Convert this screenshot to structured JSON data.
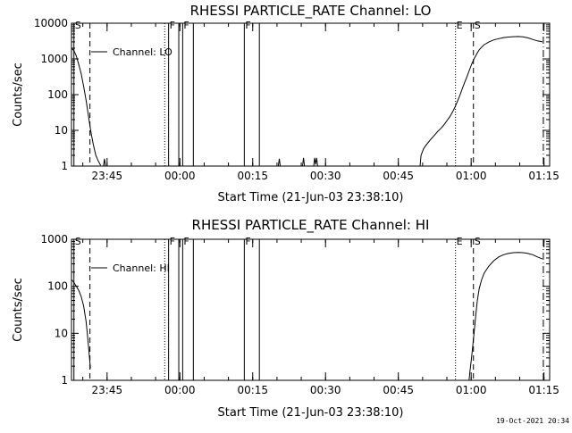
{
  "footer_timestamp": "19-Oct-2021 20:34",
  "chart_data": [
    {
      "type": "line",
      "title": "RHESSI PARTICLE_RATE Channel: LO",
      "xlabel": "Start Time (21-Jun-03 23:38:10)",
      "ylabel": "Counts/sec",
      "yscale": "log",
      "ylim": [
        1,
        10000
      ],
      "xlim_minutes": [
        0,
        98.5
      ],
      "xticks": [
        {
          "t": 7.33,
          "label": "23:45"
        },
        {
          "t": 22.33,
          "label": "00:00"
        },
        {
          "t": 37.33,
          "label": "00:15"
        },
        {
          "t": 52.33,
          "label": "00:30"
        },
        {
          "t": 67.33,
          "label": "00:45"
        },
        {
          "t": 82.33,
          "label": "01:00"
        },
        {
          "t": 97.33,
          "label": "01:15"
        }
      ],
      "yticks": [
        {
          "v": 1,
          "label": "1"
        },
        {
          "v": 10,
          "label": "10"
        },
        {
          "v": 100,
          "label": "100"
        },
        {
          "v": 1000,
          "label": "1000"
        },
        {
          "v": 10000,
          "label": "10000"
        }
      ],
      "legend": {
        "label": "Channel: LO",
        "placement": "top-left"
      },
      "markers": [
        {
          "t": 0.5,
          "style": "solid",
          "label": "S"
        },
        {
          "t": 3.8,
          "style": "dashed",
          "label": ""
        },
        {
          "t": 19.2,
          "style": "dotted",
          "label": ""
        },
        {
          "t": 20.0,
          "style": "solid",
          "label": "F"
        },
        {
          "t": 22.1,
          "style": "solid",
          "label": ""
        },
        {
          "t": 22.9,
          "style": "solid",
          "label": "F"
        },
        {
          "t": 25.1,
          "style": "solid",
          "label": ""
        },
        {
          "t": 35.6,
          "style": "solid",
          "label": "F"
        },
        {
          "t": 38.7,
          "style": "solid",
          "label": ""
        },
        {
          "t": 79.1,
          "style": "dotted",
          "label": "E"
        },
        {
          "t": 82.8,
          "style": "dashed",
          "label": "S"
        },
        {
          "t": 97.2,
          "style": "dashdot",
          "label": ""
        }
      ],
      "series": [
        {
          "segments": [
            [
              [
                0,
                2000
              ],
              [
                0.5,
                1700
              ],
              [
                1,
                1200
              ],
              [
                1.5,
                700
              ],
              [
                2,
                380
              ],
              [
                2.5,
                170
              ],
              [
                3,
                70
              ],
              [
                3.5,
                25
              ],
              [
                4,
                9
              ],
              [
                4.5,
                4
              ],
              [
                5,
                2
              ],
              [
                5.5,
                1.4
              ],
              [
                6,
                1.05
              ]
            ],
            [
              [
                6.6,
                1
              ],
              [
                6.8,
                1.6
              ],
              [
                7.0,
                1
              ]
            ],
            [
              [
                42.6,
                1
              ],
              [
                42.8,
                1.6
              ],
              [
                43.0,
                1
              ]
            ],
            [
              [
                47.6,
                1
              ],
              [
                47.8,
                1.7
              ],
              [
                48.0,
                1
              ]
            ],
            [
              [
                49.9,
                1
              ],
              [
                50.1,
                1.7
              ],
              [
                50.3,
                1.1
              ],
              [
                50.5,
                1.7
              ],
              [
                50.7,
                1
              ]
            ],
            [
              [
                71.8,
                1
              ],
              [
                72.0,
                2
              ],
              [
                72.5,
                3
              ],
              [
                73,
                3.8
              ],
              [
                73.5,
                4.6
              ],
              [
                74,
                5.6
              ],
              [
                74.5,
                6.6
              ],
              [
                75,
                8
              ],
              [
                75.5,
                9.5
              ],
              [
                76,
                11
              ],
              [
                76.5,
                13
              ],
              [
                77,
                16
              ],
              [
                77.5,
                20
              ],
              [
                78,
                25
              ],
              [
                78.5,
                33
              ],
              [
                79,
                45
              ],
              [
                79.5,
                65
              ],
              [
                80,
                95
              ],
              [
                80.5,
                145
              ],
              [
                81,
                220
              ],
              [
                81.5,
                330
              ],
              [
                82,
                500
              ],
              [
                82.5,
                750
              ],
              [
                83,
                1050
              ],
              [
                83.5,
                1400
              ],
              [
                84,
                1800
              ],
              [
                84.5,
                2150
              ],
              [
                85,
                2500
              ],
              [
                86,
                3000
              ],
              [
                87,
                3400
              ],
              [
                88,
                3700
              ],
              [
                89,
                3950
              ],
              [
                90,
                4100
              ],
              [
                91,
                4200
              ],
              [
                92,
                4250
              ],
              [
                93,
                4150
              ],
              [
                94,
                3900
              ],
              [
                95,
                3500
              ],
              [
                96,
                3200
              ],
              [
                97,
                3000
              ]
            ]
          ]
        }
      ]
    },
    {
      "type": "line",
      "title": "RHESSI PARTICLE_RATE Channel: HI",
      "xlabel": "Start Time (21-Jun-03 23:38:10)",
      "ylabel": "Counts/sec",
      "yscale": "log",
      "ylim": [
        1,
        1000
      ],
      "xlim_minutes": [
        0,
        98.5
      ],
      "xticks": [
        {
          "t": 7.33,
          "label": "23:45"
        },
        {
          "t": 22.33,
          "label": "00:00"
        },
        {
          "t": 37.33,
          "label": "00:15"
        },
        {
          "t": 52.33,
          "label": "00:30"
        },
        {
          "t": 67.33,
          "label": "00:45"
        },
        {
          "t": 82.33,
          "label": "01:00"
        },
        {
          "t": 97.33,
          "label": "01:15"
        }
      ],
      "yticks": [
        {
          "v": 1,
          "label": "1"
        },
        {
          "v": 10,
          "label": "10"
        },
        {
          "v": 100,
          "label": "100"
        },
        {
          "v": 1000,
          "label": "1000"
        }
      ],
      "legend": {
        "label": "Channel: HI",
        "placement": "top-left"
      },
      "markers": [
        {
          "t": 0.5,
          "style": "solid",
          "label": "S"
        },
        {
          "t": 3.8,
          "style": "dashed",
          "label": ""
        },
        {
          "t": 19.2,
          "style": "dotted",
          "label": ""
        },
        {
          "t": 20.0,
          "style": "solid",
          "label": "F"
        },
        {
          "t": 22.1,
          "style": "solid",
          "label": ""
        },
        {
          "t": 22.9,
          "style": "solid",
          "label": "F"
        },
        {
          "t": 25.1,
          "style": "solid",
          "label": ""
        },
        {
          "t": 35.6,
          "style": "solid",
          "label": "F"
        },
        {
          "t": 38.7,
          "style": "solid",
          "label": ""
        },
        {
          "t": 79.1,
          "style": "dotted",
          "label": "E"
        },
        {
          "t": 82.8,
          "style": "dashed",
          "label": "S"
        },
        {
          "t": 97.2,
          "style": "dashdot",
          "label": ""
        }
      ],
      "series": [
        {
          "segments": [
            [
              [
                0,
                140
              ],
              [
                0.5,
                120
              ],
              [
                1,
                100
              ],
              [
                1.5,
                82
              ],
              [
                2,
                60
              ],
              [
                2.5,
                38
              ],
              [
                3,
                18
              ],
              [
                3.3,
                9
              ],
              [
                3.6,
                4
              ],
              [
                3.9,
                1.8
              ]
            ],
            [
              [
                81.9,
                1
              ],
              [
                82.1,
                1.6
              ],
              [
                82.4,
                3
              ],
              [
                82.7,
                6
              ],
              [
                83,
                12
              ],
              [
                83.3,
                25
              ],
              [
                83.6,
                50
              ],
              [
                84,
                90
              ],
              [
                84.5,
                140
              ],
              [
                85,
                190
              ],
              [
                86,
                270
              ],
              [
                87,
                350
              ],
              [
                88,
                420
              ],
              [
                89,
                470
              ],
              [
                90,
                500
              ],
              [
                91,
                520
              ],
              [
                92,
                525
              ],
              [
                93,
                520
              ],
              [
                94,
                500
              ],
              [
                95,
                470
              ],
              [
                96,
                420
              ],
              [
                97,
                380
              ]
            ]
          ]
        }
      ]
    }
  ]
}
